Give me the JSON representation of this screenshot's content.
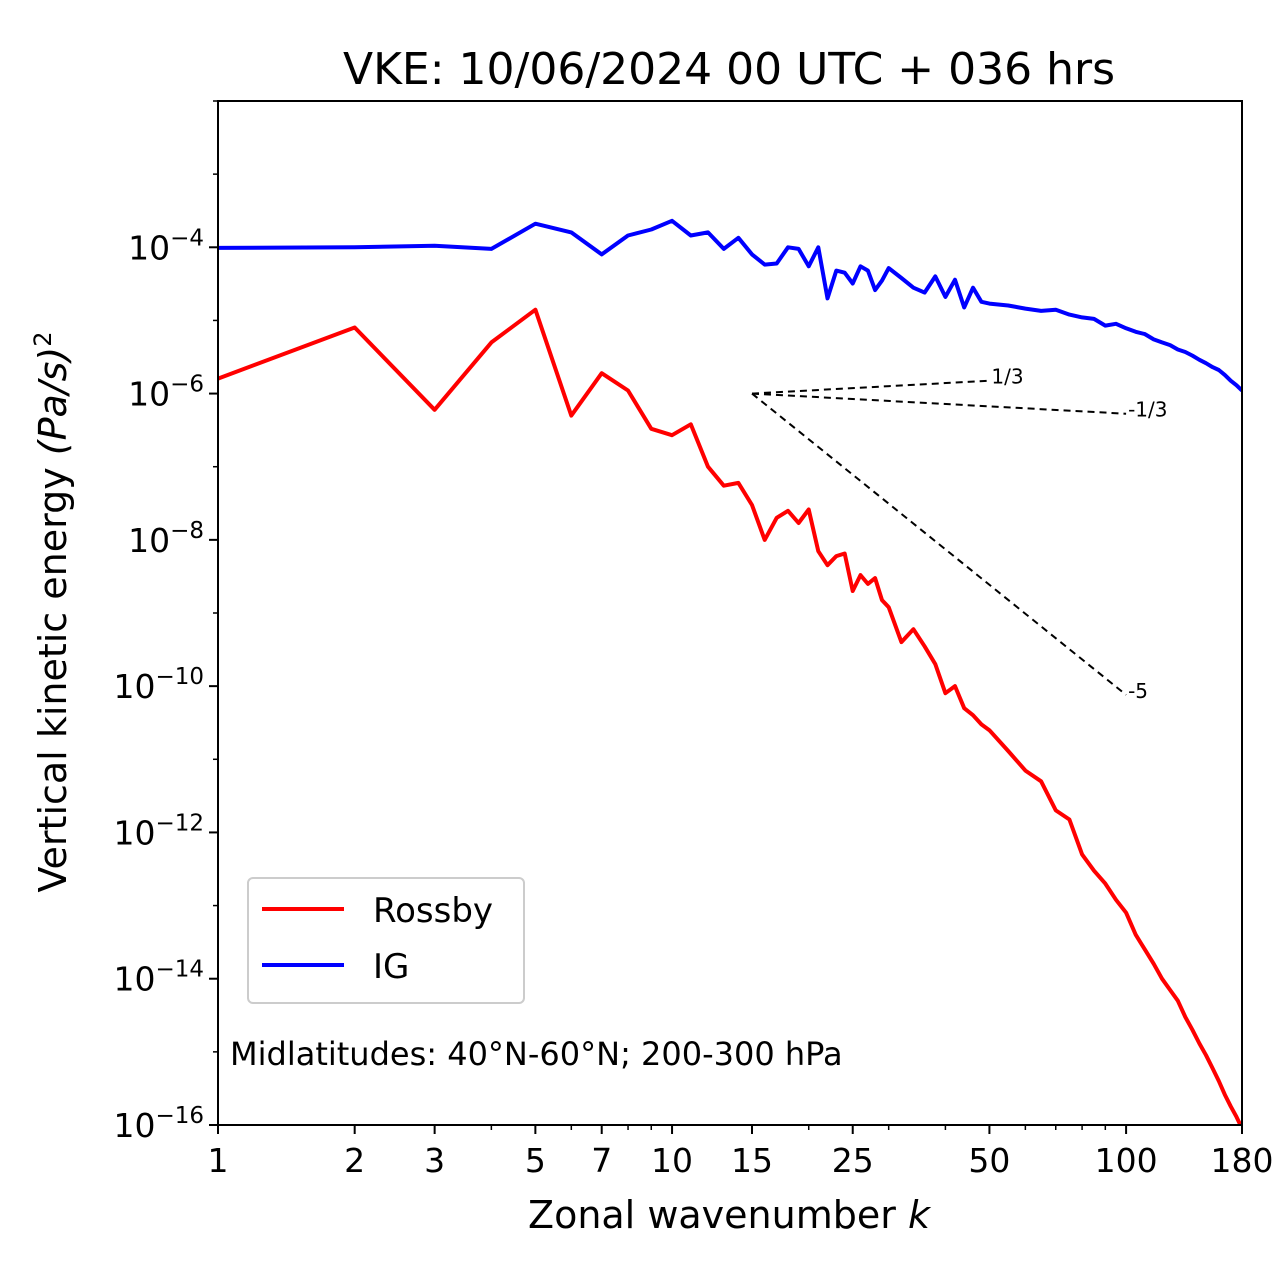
{
  "chart_data": {
    "type": "line",
    "title": "VKE: 10/06/2024 00 UTC + 036 hrs",
    "xlabel": "Zonal wavenumber",
    "xlabel_var": "k",
    "ylabel": "Vertical kinetic energy",
    "ylabel_units": "(Pa/s)",
    "ylabel_units_power": "2",
    "x_scale": "log",
    "y_scale": "log",
    "xlim": [
      1,
      180
    ],
    "ylim": [
      1e-16,
      0.01
    ],
    "x_ticks": [
      1,
      2,
      3,
      5,
      7,
      10,
      15,
      25,
      50,
      100,
      180
    ],
    "x_tick_labels": [
      "1",
      "2",
      "3",
      "5",
      "7",
      "10",
      "15",
      "25",
      "50",
      "100",
      "180"
    ],
    "y_ticks": [
      -16,
      -14,
      -12,
      -10,
      -8,
      -6,
      -4
    ],
    "y_tick_base": "10",
    "y_tick_exponents": [
      "−16",
      "−14",
      "−12",
      "−10",
      "−8",
      "−6",
      "−4"
    ],
    "grid": false,
    "legend_position": "lower-left",
    "annotation": "Midlatitudes: 40°N-60°N; 200-300 hPa",
    "reference_slopes": [
      {
        "label": "1/3",
        "x": [
          15,
          50
        ],
        "y": [
          1e-06,
          1.5e-06
        ]
      },
      {
        "label": "-1/3",
        "x": [
          15,
          100
        ],
        "y": [
          1e-06,
          5.3e-07
        ]
      },
      {
        "label": "-5",
        "x": [
          15,
          100
        ],
        "y": [
          1e-06,
          7.6e-11
        ]
      }
    ],
    "series": [
      {
        "name": "Rossby",
        "color": "#ff0000",
        "x": [
          1,
          2,
          3,
          4,
          5,
          6,
          7,
          8,
          9,
          10,
          11,
          12,
          13,
          14,
          15,
          16,
          17,
          18,
          19,
          20,
          21,
          22,
          23,
          24,
          25,
          26,
          27,
          28,
          29,
          30,
          32,
          34,
          36,
          38,
          40,
          42,
          44,
          46,
          48,
          50,
          55,
          60,
          65,
          70,
          75,
          80,
          85,
          90,
          95,
          100,
          105,
          110,
          115,
          120,
          125,
          130,
          135,
          140,
          145,
          150,
          155,
          160,
          165,
          170,
          175,
          180
        ],
        "y": [
          1.6e-06,
          8e-06,
          6e-07,
          5e-06,
          1.4e-05,
          5e-07,
          1.9e-06,
          1.1e-06,
          3.3e-07,
          2.7e-07,
          3.8e-07,
          1e-07,
          5.5e-08,
          6e-08,
          3e-08,
          1e-08,
          2e-08,
          2.5e-08,
          1.7e-08,
          2.6e-08,
          7e-09,
          4.5e-09,
          6e-09,
          6.5e-09,
          2e-09,
          3.3e-09,
          2.5e-09,
          3e-09,
          1.5e-09,
          1.2e-09,
          4e-10,
          6e-10,
          3.5e-10,
          2e-10,
          8e-11,
          1e-10,
          5e-11,
          4e-11,
          3e-11,
          2.5e-11,
          1.3e-11,
          7e-12,
          5e-12,
          2e-12,
          1.5e-12,
          5e-13,
          3e-13,
          2e-13,
          1.2e-13,
          8e-14,
          4e-14,
          2.5e-14,
          1.6e-14,
          1e-14,
          7e-15,
          5e-15,
          3e-15,
          2e-15,
          1.3e-15,
          9e-16,
          6e-16,
          4e-16,
          2.6e-16,
          1.8e-16,
          1.3e-16,
          9e-17
        ]
      },
      {
        "name": "IG",
        "color": "#0000ff",
        "x": [
          1,
          2,
          3,
          4,
          5,
          6,
          7,
          8,
          9,
          10,
          11,
          12,
          13,
          14,
          15,
          16,
          17,
          18,
          19,
          20,
          21,
          22,
          23,
          24,
          25,
          26,
          27,
          28,
          29,
          30,
          32,
          34,
          36,
          38,
          40,
          42,
          44,
          46,
          48,
          50,
          55,
          60,
          65,
          70,
          75,
          80,
          85,
          90,
          95,
          100,
          105,
          110,
          115,
          120,
          125,
          130,
          135,
          140,
          145,
          150,
          155,
          160,
          165,
          170,
          175,
          180
        ],
        "y": [
          9.8e-05,
          0.0001,
          0.000105,
          9.5e-05,
          0.00021,
          0.00016,
          8e-05,
          0.000145,
          0.000175,
          0.00023,
          0.000145,
          0.00016,
          9.5e-05,
          0.000135,
          8e-05,
          5.8e-05,
          6e-05,
          0.0001,
          9.5e-05,
          5.5e-05,
          0.0001,
          2e-05,
          4.8e-05,
          4.5e-05,
          3.2e-05,
          5.5e-05,
          4.8e-05,
          2.6e-05,
          3.5e-05,
          5.2e-05,
          3.8e-05,
          2.8e-05,
          2.4e-05,
          4e-05,
          2.1e-05,
          3.6e-05,
          1.5e-05,
          2.8e-05,
          1.8e-05,
          1.7e-05,
          1.6e-05,
          1.45e-05,
          1.35e-05,
          1.4e-05,
          1.2e-05,
          1.1e-05,
          1.05e-05,
          8.5e-06,
          9e-06,
          7.8e-06,
          7e-06,
          6.5e-06,
          5.5e-06,
          5e-06,
          4.6e-06,
          4e-06,
          3.7e-06,
          3.3e-06,
          2.9e-06,
          2.6e-06,
          2.3e-06,
          2.1e-06,
          1.8e-06,
          1.5e-06,
          1.3e-06,
          1.1e-06
        ]
      }
    ]
  }
}
